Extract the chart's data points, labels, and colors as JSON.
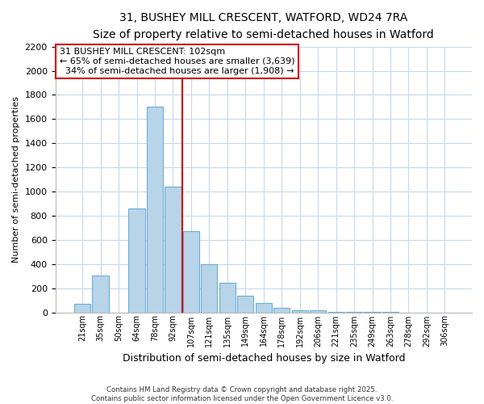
{
  "title1": "31, BUSHEY MILL CRESCENT, WATFORD, WD24 7RA",
  "title2": "Size of property relative to semi-detached houses in Watford",
  "xlabel": "Distribution of semi-detached houses by size in Watford",
  "ylabel": "Number of semi-detached properties",
  "bar_labels": [
    "21sqm",
    "35sqm",
    "50sqm",
    "64sqm",
    "78sqm",
    "92sqm",
    "107sqm",
    "121sqm",
    "135sqm",
    "149sqm",
    "164sqm",
    "178sqm",
    "192sqm",
    "206sqm",
    "221sqm",
    "235sqm",
    "249sqm",
    "263sqm",
    "278sqm",
    "292sqm",
    "306sqm"
  ],
  "bar_values": [
    70,
    305,
    0,
    860,
    1700,
    1040,
    670,
    395,
    245,
    140,
    80,
    35,
    20,
    15,
    5,
    5,
    2,
    2,
    0,
    0,
    0
  ],
  "bar_color": "#b8d4e8",
  "bar_edge_color": "#6baed6",
  "vline_color": "#cc0000",
  "annotation_title": "31 BUSHEY MILL CRESCENT: 102sqm",
  "annotation_line1": "← 65% of semi-detached houses are smaller (3,639)",
  "annotation_line2": "  34% of semi-detached houses are larger (1,908) →",
  "annotation_box_color": "#ffffff",
  "annotation_box_edge": "#cc0000",
  "ylim": [
    0,
    2200
  ],
  "yticks": [
    0,
    200,
    400,
    600,
    800,
    1000,
    1200,
    1400,
    1600,
    1800,
    2000,
    2200
  ],
  "footer1": "Contains HM Land Registry data © Crown copyright and database right 2025.",
  "footer2": "Contains public sector information licensed under the Open Government Licence v3.0.",
  "bg_color": "#ffffff",
  "grid_color": "#c8d8e8"
}
